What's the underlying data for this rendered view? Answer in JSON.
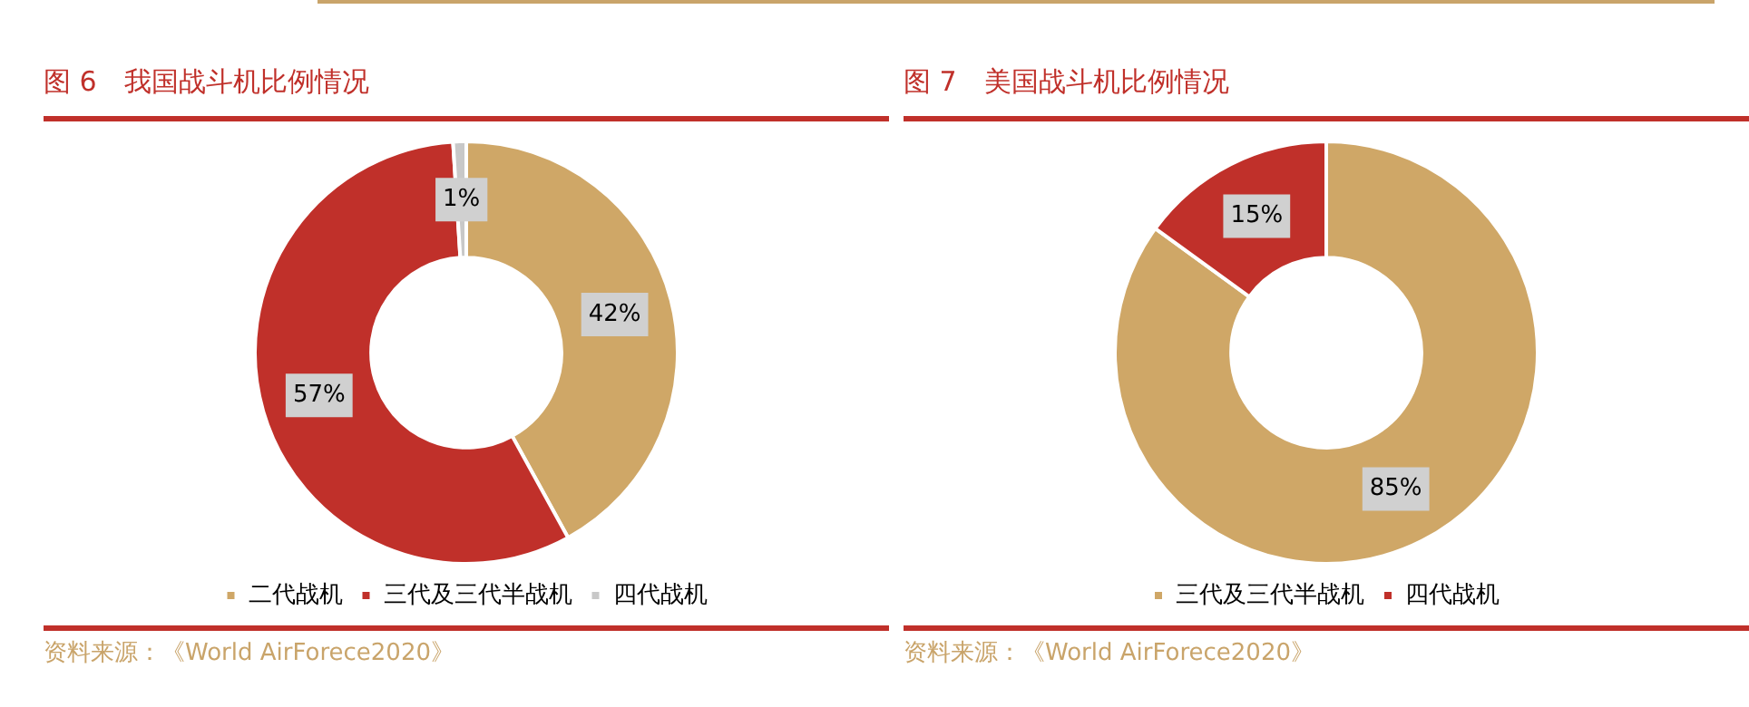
{
  "chart_data": [
    {
      "type": "donut",
      "title": "图 6　我国战斗机比例情况",
      "categories": [
        "二代战机",
        "三代及三代半战机",
        "四代战机"
      ],
      "values": [
        42,
        57,
        1
      ],
      "colors": [
        "#cfa767",
        "#c0302a",
        "#c8c8c8"
      ],
      "legend": "bottom",
      "value_labels": [
        "42%",
        "57%",
        "1%"
      ],
      "annotations": [
        "资料来源：《World AirForece2020》"
      ]
    },
    {
      "type": "donut",
      "title": "图 7　美国战斗机比例情况",
      "categories": [
        "三代及三代半战机",
        "四代战机"
      ],
      "values": [
        85,
        15
      ],
      "colors": [
        "#cfa767",
        "#c0302a"
      ],
      "legend": "bottom",
      "value_labels": [
        "85%",
        "15%"
      ],
      "annotations": [
        "资料来源：《World AirForece2020》"
      ]
    }
  ]
}
